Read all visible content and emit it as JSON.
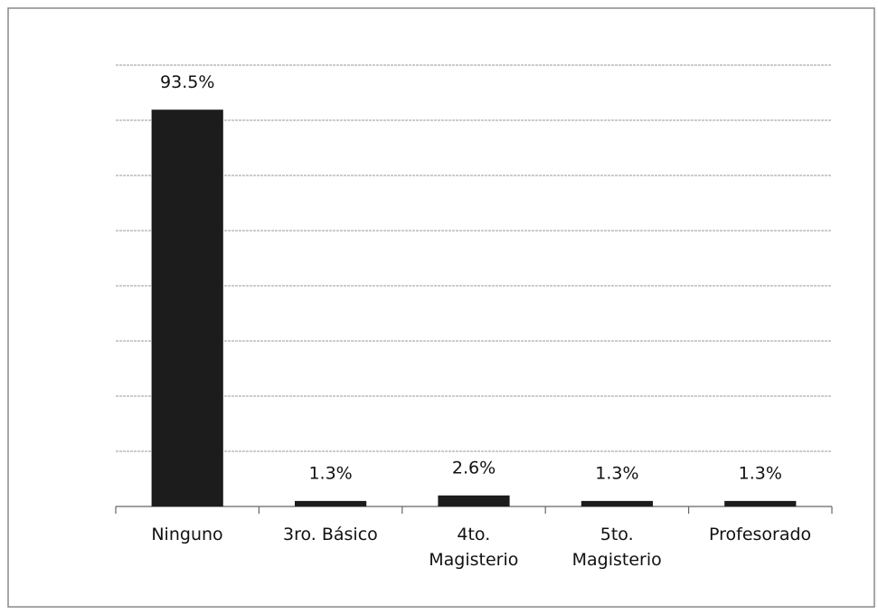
{
  "chart_data": {
    "type": "bar",
    "categories": [
      "Ninguno",
      "3ro. Básico",
      "4to.\nMagisterio",
      "5to.\nMagisterio",
      "Profesorado"
    ],
    "values": [
      93.5,
      1.3,
      2.6,
      1.3,
      1.3
    ],
    "value_labels": [
      "93.5%",
      "1.3%",
      "2.6%",
      "1.3%",
      "1.3%"
    ],
    "color": "#1c1c1c",
    "ylim": [
      0,
      104
    ],
    "yticks": [
      0,
      13,
      26,
      39,
      52,
      65,
      78,
      91,
      104
    ],
    "grid": true
  }
}
